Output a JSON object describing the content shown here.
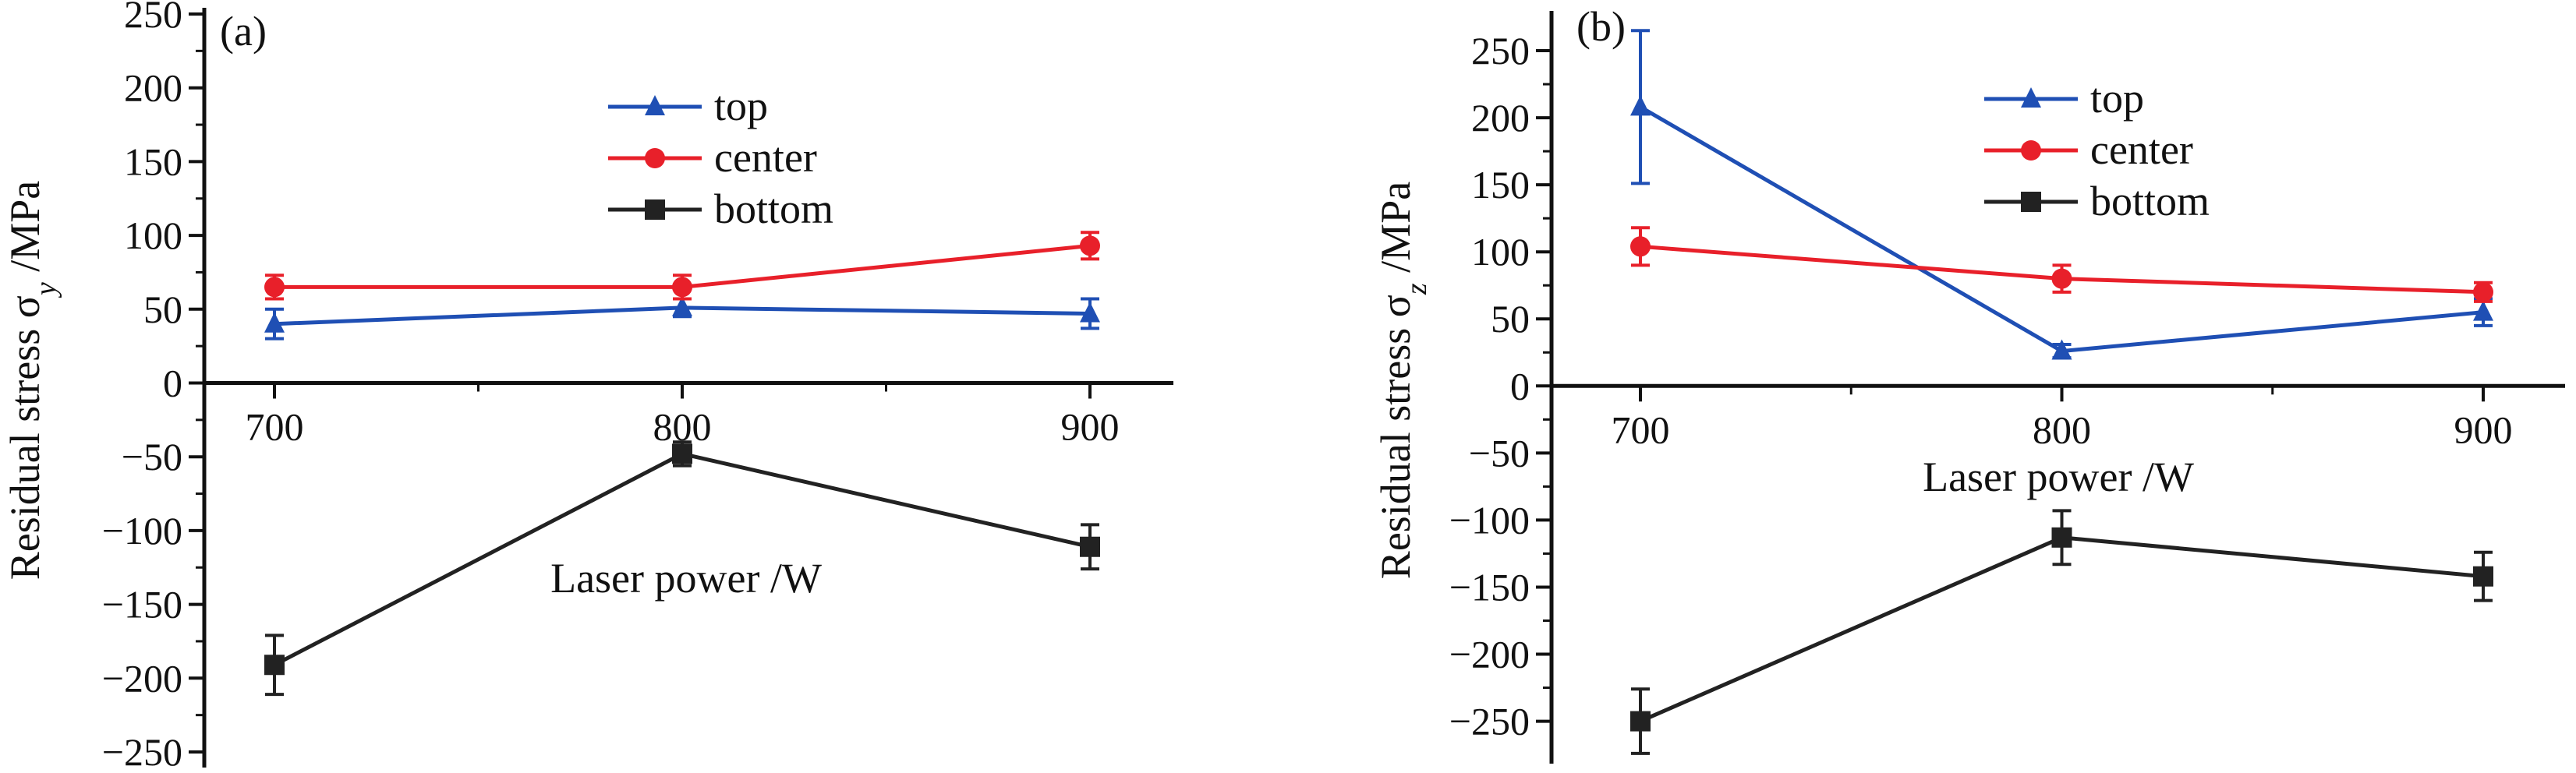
{
  "chart_data": [
    {
      "type": "line",
      "panel_label": "(a)",
      "title": "",
      "xlabel": "Laser power /W",
      "ylabel": "Residual stress σ",
      "ylabel_subscript": "y",
      "ylabel_unit": " /MPa",
      "x": [
        700,
        800,
        900
      ],
      "xticks": [
        "700",
        "800",
        "900"
      ],
      "yticks": [
        250,
        200,
        150,
        100,
        50,
        0,
        -50,
        -100,
        -150,
        -200,
        -250
      ],
      "ytick_labels": [
        "250",
        "200",
        "150",
        "100",
        "50",
        "0",
        "−50",
        "−100",
        "−150",
        "−200",
        "−250"
      ],
      "xlim": [
        683,
        798
      ],
      "ylim": [
        -250,
        250
      ],
      "legend": "upper center",
      "grid": false,
      "series": [
        {
          "name": "top",
          "marker": "triangle",
          "color": "#1f4fb4",
          "values": [
            40,
            51,
            47
          ],
          "errors": [
            10,
            6,
            10
          ]
        },
        {
          "name": "center",
          "marker": "circle",
          "color": "#e8202a",
          "values": [
            65,
            65,
            93
          ],
          "errors": [
            8,
            8,
            9
          ]
        },
        {
          "name": "bottom",
          "marker": "square",
          "color": "#222222",
          "values": [
            -191,
            -48,
            -111
          ],
          "errors": [
            20,
            8,
            15
          ]
        }
      ]
    },
    {
      "type": "line",
      "panel_label": "(b)",
      "title": "",
      "xlabel": "Laser power /W",
      "ylabel": "Residual stress σ",
      "ylabel_subscript": "z",
      "ylabel_unit": " /MPa",
      "x": [
        700,
        800,
        900
      ],
      "xticks": [
        "700",
        "800",
        "900"
      ],
      "yticks": [
        250,
        200,
        150,
        100,
        50,
        0,
        -50,
        -100,
        -150,
        -200,
        -250
      ],
      "ytick_labels": [
        "250",
        "200",
        "150",
        "100",
        "50",
        "0",
        "−50",
        "−100",
        "−150",
        "−200",
        "−250"
      ],
      "xlim": [
        683,
        803
      ],
      "ylim": [
        -270,
        275
      ],
      "legend": "upper center",
      "grid": false,
      "series": [
        {
          "name": "top",
          "marker": "triangle",
          "color": "#1f4fb4",
          "values": [
            208,
            26,
            55
          ],
          "errors": [
            57,
            5,
            10
          ]
        },
        {
          "name": "center",
          "marker": "circle",
          "color": "#e8202a",
          "values": [
            104,
            80,
            70
          ],
          "errors": [
            14,
            10,
            7
          ]
        },
        {
          "name": "bottom",
          "marker": "square",
          "color": "#222222",
          "values": [
            -250,
            -113,
            -142
          ],
          "errors": [
            24,
            20,
            18
          ]
        }
      ]
    }
  ]
}
